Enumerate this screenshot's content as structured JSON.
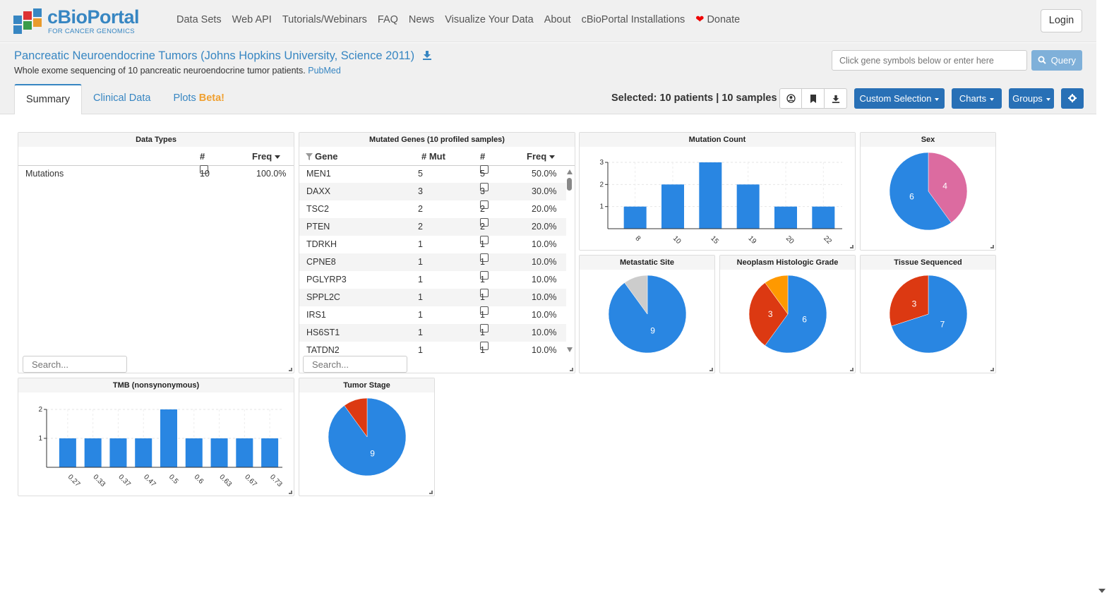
{
  "brand": {
    "name": "cBioPortal",
    "tagline": "FOR CANCER GENOMICS"
  },
  "nav": [
    "Data Sets",
    "Web API",
    "Tutorials/Webinars",
    "FAQ",
    "News",
    "Visualize Your Data",
    "About",
    "cBioPortal Installations"
  ],
  "donate_label": "Donate",
  "login_label": "Login",
  "study": {
    "title": "Pancreatic Neuroendocrine Tumors (Johns Hopkins University, Science 2011)",
    "description": "Whole exome sequencing of 10 pancreatic neuroendocrine tumor patients.",
    "pubmed_label": "PubMed"
  },
  "query": {
    "placeholder": "Click gene symbols below or enter here",
    "button_label": "Query"
  },
  "tabs": {
    "summary": "Summary",
    "clinical": "Clinical Data",
    "plots": "Plots",
    "beta": "Beta!"
  },
  "selection": {
    "text": "Selected: 10 patients | 10 samples"
  },
  "buttons": {
    "custom_selection": "Custom Selection",
    "charts": "Charts",
    "groups": "Groups"
  },
  "data_types": {
    "title": "Data Types",
    "col_count": "#",
    "col_freq": "Freq",
    "rows": [
      {
        "name": "Mutations",
        "count": "10",
        "freq": "100.0%"
      }
    ],
    "search_placeholder": "Search..."
  },
  "mutated_genes": {
    "title": "Mutated Genes (10 profiled samples)",
    "col_gene": "Gene",
    "col_mut": "# Mut",
    "col_count": "#",
    "col_freq": "Freq",
    "rows": [
      {
        "gene": "MEN1",
        "mut": "5",
        "count": "5",
        "freq": "50.0%"
      },
      {
        "gene": "DAXX",
        "mut": "3",
        "count": "3",
        "freq": "30.0%"
      },
      {
        "gene": "TSC2",
        "mut": "2",
        "count": "2",
        "freq": "20.0%"
      },
      {
        "gene": "PTEN",
        "mut": "2",
        "count": "2",
        "freq": "20.0%"
      },
      {
        "gene": "TDRKH",
        "mut": "1",
        "count": "1",
        "freq": "10.0%"
      },
      {
        "gene": "CPNE8",
        "mut": "1",
        "count": "1",
        "freq": "10.0%"
      },
      {
        "gene": "PGLYRP3",
        "mut": "1",
        "count": "1",
        "freq": "10.0%"
      },
      {
        "gene": "SPPL2C",
        "mut": "1",
        "count": "1",
        "freq": "10.0%"
      },
      {
        "gene": "IRS1",
        "mut": "1",
        "count": "1",
        "freq": "10.0%"
      },
      {
        "gene": "HS6ST1",
        "mut": "1",
        "count": "1",
        "freq": "10.0%"
      },
      {
        "gene": "TATDN2",
        "mut": "1",
        "count": "1",
        "freq": "10.0%"
      }
    ],
    "search_placeholder": "Search..."
  },
  "chart_data": [
    {
      "type": "bar",
      "title": "Mutation Count",
      "categories": [
        "8",
        "10",
        "15",
        "19",
        "20",
        "22"
      ],
      "values": [
        1,
        2,
        3,
        2,
        1,
        1
      ],
      "ylim": [
        0,
        3
      ],
      "yticks": [
        1,
        2,
        3
      ],
      "color": "#2986e2"
    },
    {
      "type": "pie",
      "title": "Sex",
      "slices": [
        {
          "label": "4",
          "value": 4,
          "color": "#dc6ba0"
        },
        {
          "label": "6",
          "value": 6,
          "color": "#2986e2"
        }
      ]
    },
    {
      "type": "pie",
      "title": "Metastatic Site",
      "slices": [
        {
          "label": "9",
          "value": 9,
          "color": "#2986e2"
        },
        {
          "label": "",
          "value": 1,
          "color": "#cccccc"
        }
      ]
    },
    {
      "type": "pie",
      "title": "Neoplasm Histologic Grade",
      "slices": [
        {
          "label": "6",
          "value": 6,
          "color": "#2986e2"
        },
        {
          "label": "3",
          "value": 3,
          "color": "#dc3912"
        },
        {
          "label": "",
          "value": 1,
          "color": "#ff9900"
        }
      ]
    },
    {
      "type": "pie",
      "title": "Tissue Sequenced",
      "slices": [
        {
          "label": "7",
          "value": 7,
          "color": "#2986e2"
        },
        {
          "label": "3",
          "value": 3,
          "color": "#dc3912"
        }
      ]
    },
    {
      "type": "bar",
      "title": "TMB (nonsynonymous)",
      "categories": [
        "0.27",
        "0.33",
        "0.37",
        "0.47",
        "0.5",
        "0.6",
        "0.63",
        "0.67",
        "0.73"
      ],
      "values": [
        1,
        1,
        1,
        1,
        2,
        1,
        1,
        1,
        1
      ],
      "ylim": [
        0,
        2
      ],
      "yticks": [
        1,
        2
      ],
      "color": "#2986e2"
    },
    {
      "type": "pie",
      "title": "Tumor Stage",
      "slices": [
        {
          "label": "9",
          "value": 9,
          "color": "#2986e2"
        },
        {
          "label": "",
          "value": 1,
          "color": "#dc3912"
        }
      ]
    }
  ]
}
